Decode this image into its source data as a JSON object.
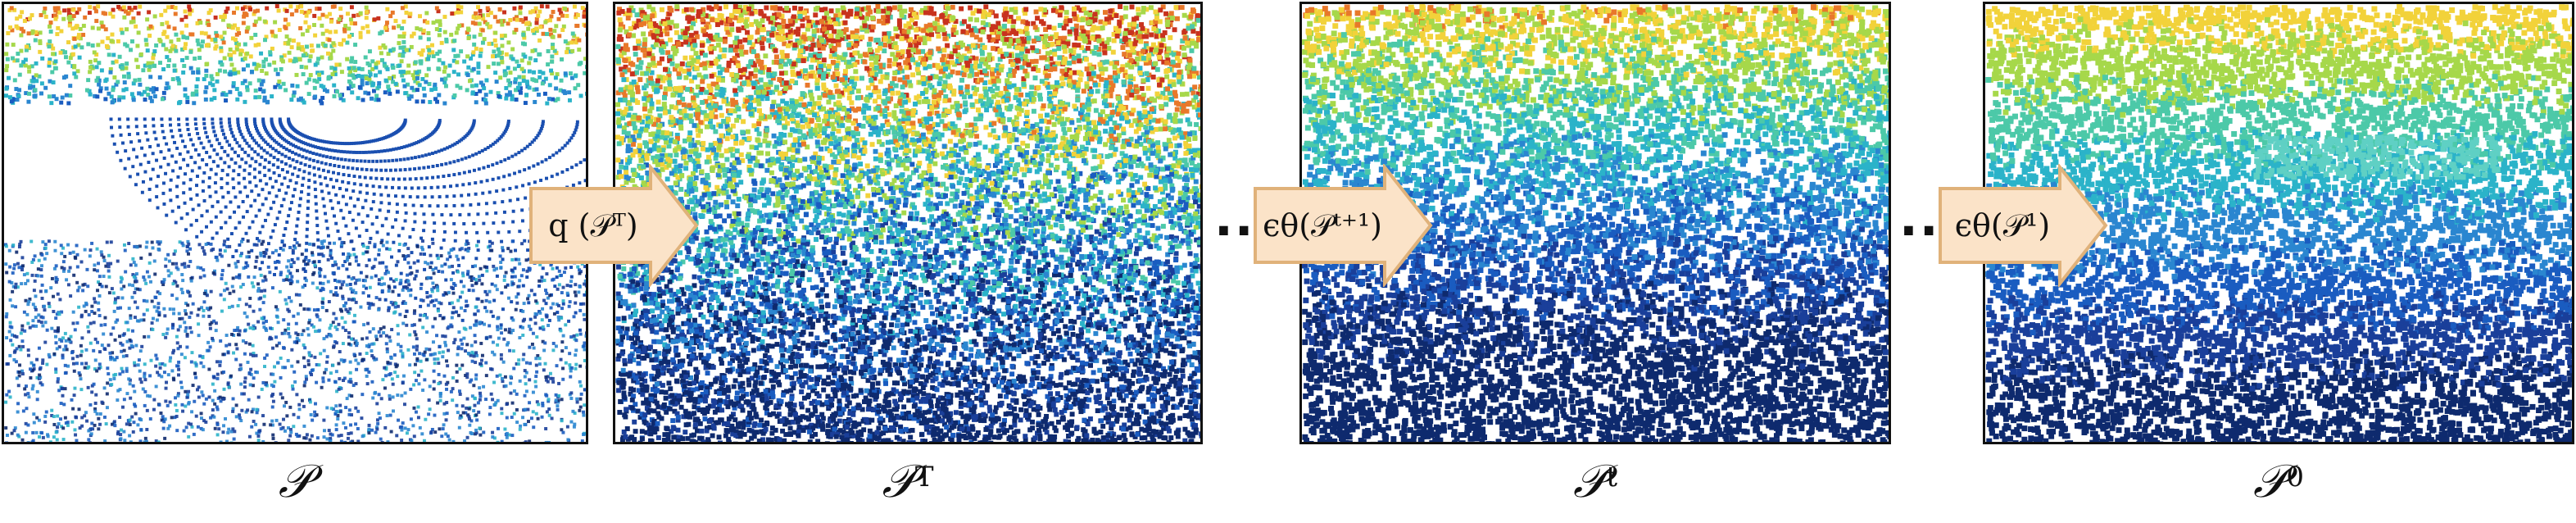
{
  "panels": [
    {
      "id": "input",
      "caption_base": "𝒫",
      "caption_sup": ""
    },
    {
      "id": "noisy",
      "caption_base": "𝒫",
      "caption_sup": "T"
    },
    {
      "id": "intermediate",
      "caption_base": "𝒫",
      "caption_sup": "t"
    },
    {
      "id": "output",
      "caption_base": "𝒫",
      "caption_sup": "0"
    }
  ],
  "arrows": [
    {
      "label": "q (𝒫ᵀ)"
    },
    {
      "label": "ϵθ(𝒫ᵗ⁺¹)"
    },
    {
      "label": "ϵθ(𝒫¹)"
    }
  ],
  "ellipsis": "...",
  "colors": {
    "arrow_fill": "#fbe3c8",
    "arrow_stroke": "#e0b27a",
    "points_dark_blue": "#1a3f9a",
    "points_cyan": "#2bb3c9",
    "points_yellow": "#f2d23a",
    "points_red": "#c8321e"
  }
}
